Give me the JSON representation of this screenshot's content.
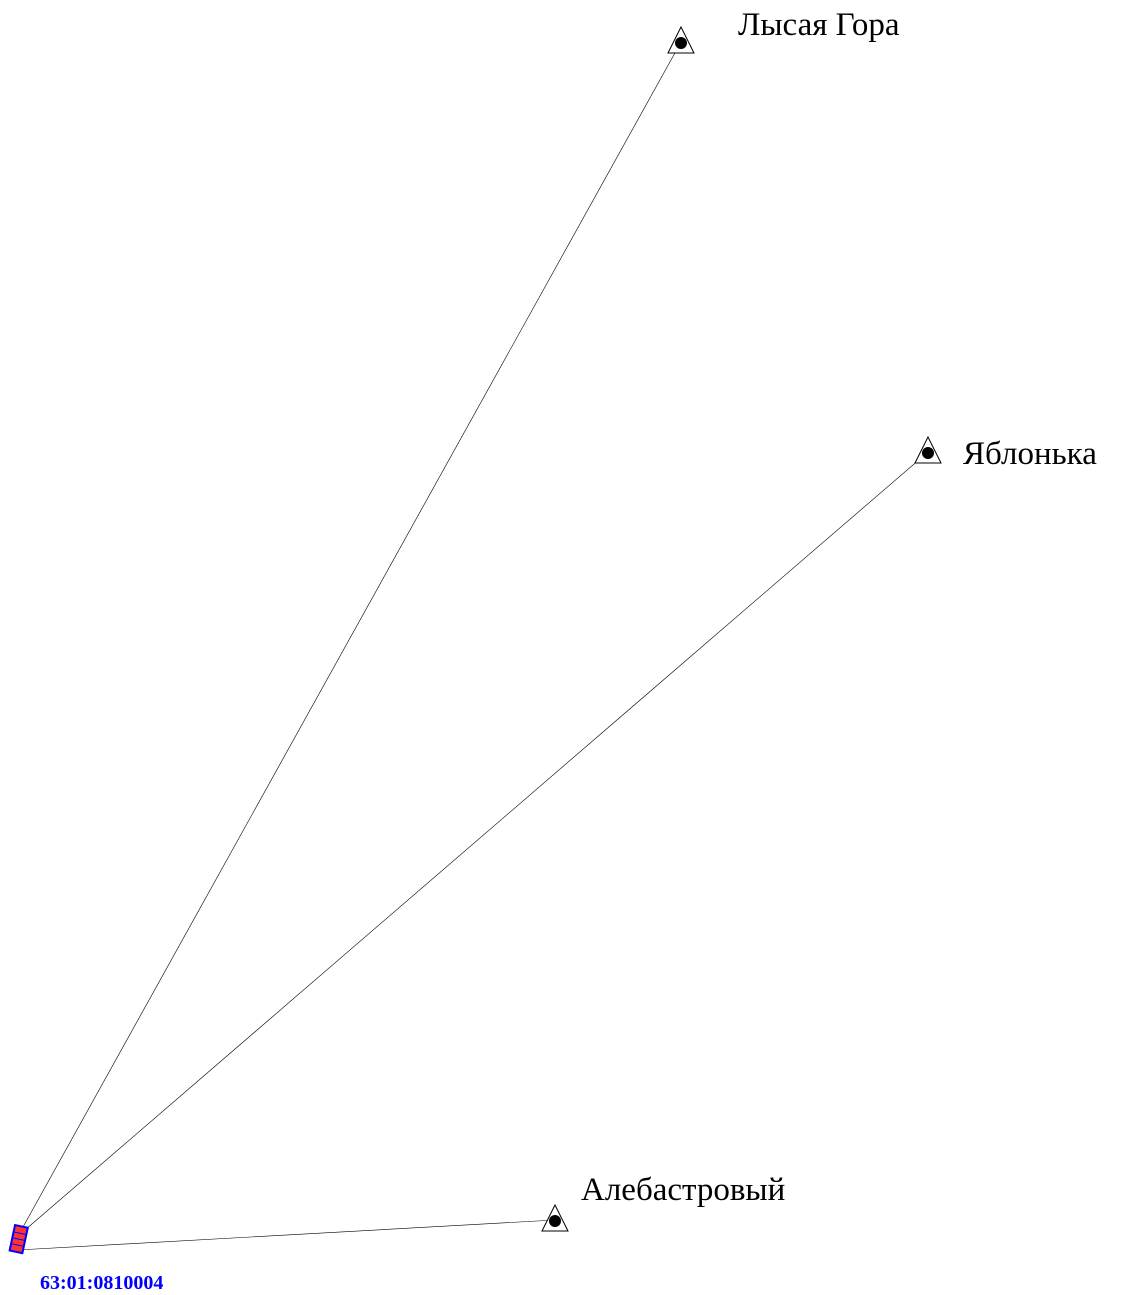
{
  "stations": [
    {
      "id": "lysaya-gora",
      "label": "Лысая Гора"
    },
    {
      "id": "yablonka",
      "label": "Яблонька"
    },
    {
      "id": "alebastrovy",
      "label": "Алебастровый"
    }
  ],
  "parcel": {
    "cadastral_number": "63:01:0810004",
    "label_color": "#0000ff",
    "outline_color": "#0000ff",
    "fill_color": "#ff3333"
  }
}
